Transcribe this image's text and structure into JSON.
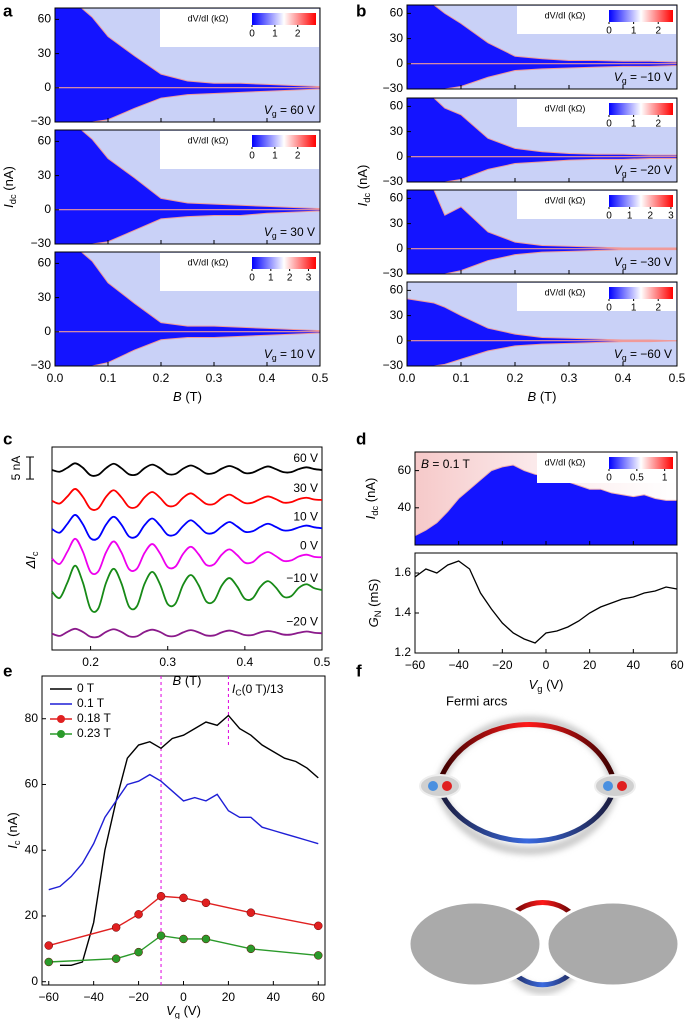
{
  "panel_labels": [
    "a",
    "b",
    "c",
    "d",
    "e",
    "f"
  ],
  "diagram": {
    "label": "Fermi arcs"
  },
  "chart_data": [
    {
      "type": "heatmap_stack",
      "xlabel": [
        "B",
        " (T)"
      ],
      "ylabel": [
        "I",
        "dc",
        " (nA)"
      ],
      "xlim": [
        0,
        0.5
      ],
      "xticks": [
        {
          "value": 0,
          "label": "0.0"
        },
        0.1,
        0.2,
        0.3,
        0.4,
        0.5
      ],
      "ylim": [
        -30,
        70
      ],
      "yticks": [
        {
          "value": -30,
          "label": "−30"
        },
        0,
        30,
        60
      ],
      "colorbar_label": "dV/dI (kΩ)",
      "x": [
        0,
        0.05,
        0.07,
        0.1,
        0.15,
        0.2,
        0.25,
        0.3,
        0.35,
        0.4,
        0.45,
        0.5
      ],
      "panels": [
        {
          "annotation": [
            "V",
            "g",
            " = 60 V"
          ],
          "clim": [
            0,
            2.8
          ],
          "cticks": [
            0,
            1,
            2
          ],
          "upper": [
            70,
            70,
            62,
            45,
            28,
            12,
            6,
            4,
            4,
            3,
            2,
            1
          ],
          "lower": [
            -30,
            -30,
            -30,
            -28,
            -18,
            -9,
            -6,
            -5,
            -4,
            -3,
            -2,
            -1
          ]
        },
        {
          "annotation": [
            "V",
            "g",
            " = 30 V"
          ],
          "clim": [
            0,
            2.8
          ],
          "cticks": [
            0,
            1,
            2
          ],
          "upper": [
            70,
            70,
            62,
            45,
            28,
            10,
            6,
            5,
            4,
            3,
            2,
            1
          ],
          "lower": [
            -30,
            -30,
            -30,
            -28,
            -18,
            -8,
            -6,
            -5,
            -5,
            -3,
            -2,
            -1
          ]
        },
        {
          "annotation": [
            "V",
            "g",
            " = 10 V"
          ],
          "clim": [
            0,
            3.4
          ],
          "cticks": [
            0,
            1,
            2,
            3
          ],
          "upper": [
            70,
            70,
            62,
            43,
            25,
            8,
            5,
            5,
            4,
            3,
            2,
            1
          ],
          "lower": [
            -30,
            -30,
            -30,
            -27,
            -16,
            -7,
            -5,
            -5,
            -4,
            -3,
            -2,
            -1
          ]
        }
      ]
    },
    {
      "type": "heatmap_stack",
      "xlabel": [
        "B",
        " (T)"
      ],
      "ylabel": [
        "I",
        "dc",
        " (nA)"
      ],
      "xlim": [
        0,
        0.5
      ],
      "xticks": [
        {
          "value": 0,
          "label": "0.0"
        },
        0.1,
        0.2,
        0.3,
        0.4,
        0.5
      ],
      "ylim": [
        -30,
        70
      ],
      "yticks": [
        {
          "value": -30,
          "label": "−30"
        },
        0,
        30,
        60
      ],
      "colorbar_label": "dV/dI (kΩ)",
      "x": [
        0,
        0.05,
        0.07,
        0.1,
        0.15,
        0.2,
        0.25,
        0.3,
        0.35,
        0.4,
        0.45,
        0.5
      ],
      "panels": [
        {
          "annotation": [
            "V",
            "g",
            " = −10 V"
          ],
          "clim": [
            0,
            2.6
          ],
          "cticks": [
            0,
            1,
            2
          ],
          "upper": [
            70,
            70,
            60,
            48,
            25,
            9,
            6,
            4,
            4,
            3,
            3,
            2
          ],
          "lower": [
            -30,
            -30,
            -30,
            -27,
            -16,
            -8,
            -6,
            -5,
            -4,
            -3,
            -3,
            -2
          ]
        },
        {
          "annotation": [
            "V",
            "g",
            " = −20 V"
          ],
          "clim": [
            0,
            2.6
          ],
          "cticks": [
            0,
            1,
            2
          ],
          "upper": [
            70,
            70,
            58,
            50,
            22,
            10,
            6,
            4,
            3,
            3,
            2,
            2
          ],
          "lower": [
            -30,
            -30,
            -30,
            -27,
            -15,
            -8,
            -6,
            -4,
            -3,
            -3,
            -2,
            -2
          ]
        },
        {
          "annotation": [
            "V",
            "g",
            " = −30 V"
          ],
          "clim": [
            0,
            3.1
          ],
          "cticks": [
            0,
            1,
            2,
            3
          ],
          "upper": [
            70,
            70,
            40,
            50,
            20,
            8,
            4,
            3,
            2,
            1,
            1,
            1
          ],
          "lower": [
            -30,
            -30,
            -30,
            -26,
            -14,
            -7,
            -4,
            -3,
            -2,
            -1,
            -1,
            -1
          ]
        },
        {
          "annotation": [
            "V",
            "g",
            " = −60 V"
          ],
          "clim": [
            0,
            2.6
          ],
          "cticks": [
            0,
            1,
            2
          ],
          "upper": [
            50,
            45,
            40,
            30,
            15,
            8,
            4,
            3,
            2,
            1,
            1,
            0
          ],
          "lower": [
            -30,
            -30,
            -28,
            -22,
            -12,
            -6,
            -4,
            -3,
            -2,
            -1,
            -1,
            0
          ]
        }
      ]
    },
    {
      "type": "line",
      "xlabel": [
        "B",
        " (T)"
      ],
      "ylabel": [
        "ΔI",
        "c"
      ],
      "xlim": [
        0.15,
        0.5
      ],
      "xticks": [
        0.2,
        0.3,
        0.4,
        0.5
      ],
      "ylim": [
        -42,
        4
      ],
      "scale_bar": {
        "value": 5,
        "label": "5 nA"
      },
      "x": [
        0.15,
        0.16,
        0.17,
        0.18,
        0.19,
        0.2,
        0.21,
        0.22,
        0.23,
        0.24,
        0.25,
        0.26,
        0.27,
        0.28,
        0.29,
        0.3,
        0.31,
        0.32,
        0.33,
        0.34,
        0.35,
        0.36,
        0.37,
        0.38,
        0.39,
        0.4,
        0.41,
        0.42,
        0.43,
        0.44,
        0.45,
        0.46,
        0.47,
        0.48,
        0.49,
        0.5
      ],
      "series": [
        {
          "name": "60 V",
          "color": "#000000",
          "values": [
            -1.2,
            -1.6,
            -0.7,
            0.3,
            -0.7,
            -2.4,
            -2.3,
            -0.8,
            0.2,
            -0.8,
            -2.2,
            -2.2,
            -0.8,
            0.0,
            -0.8,
            -2.1,
            -2.1,
            -0.9,
            -0.2,
            -0.9,
            -2.0,
            -1.9,
            -0.9,
            -0.3,
            -0.9,
            -1.9,
            -1.8,
            -1.0,
            -0.4,
            -1.0,
            -1.7,
            -1.7,
            -1.0,
            -0.6,
            -1.0,
            -1.2
          ]
        },
        {
          "name": "30 V",
          "color": "#ff0000",
          "values": [
            -8.2,
            -8.8,
            -7.2,
            -5.5,
            -7.3,
            -10.0,
            -9.9,
            -7.3,
            -5.8,
            -7.4,
            -9.6,
            -9.5,
            -7.4,
            -6.2,
            -7.5,
            -9.3,
            -9.2,
            -7.5,
            -6.5,
            -7.6,
            -8.9,
            -8.9,
            -7.6,
            -6.8,
            -7.7,
            -8.7,
            -8.6,
            -7.8,
            -7.2,
            -7.8,
            -8.6,
            -8.5,
            -7.8,
            -7.5,
            -7.9,
            -8.0
          ]
        },
        {
          "name": "10 V",
          "color": "#0000ff",
          "values": [
            -14.6,
            -15.4,
            -13.4,
            -11.4,
            -13.5,
            -16.7,
            -16.6,
            -13.6,
            -11.8,
            -13.6,
            -16.3,
            -16.2,
            -13.7,
            -12.2,
            -13.8,
            -15.9,
            -15.8,
            -13.9,
            -12.6,
            -13.9,
            -15.5,
            -15.4,
            -14.0,
            -13.0,
            -14.0,
            -15.2,
            -15.1,
            -14.1,
            -13.4,
            -14.1,
            -14.9,
            -14.8,
            -14.2,
            -13.8,
            -14.2,
            -14.4
          ]
        },
        {
          "name": "0 V",
          "color": "#ee00ee",
          "values": [
            -21.3,
            -22.5,
            -19.7,
            -16.8,
            -19.7,
            -24.3,
            -24.2,
            -19.9,
            -17.4,
            -19.9,
            -23.7,
            -23.6,
            -20.0,
            -18.0,
            -20.1,
            -23.2,
            -23.1,
            -20.2,
            -18.6,
            -20.3,
            -22.7,
            -22.6,
            -20.4,
            -19.2,
            -20.5,
            -22.2,
            -22.1,
            -20.6,
            -19.8,
            -20.7,
            -21.8,
            -21.7,
            -20.8,
            -20.4,
            -20.9,
            -21.0
          ]
        },
        {
          "name": "−10 V",
          "color": "#178a17",
          "values": [
            -28.8,
            -30.2,
            -26.7,
            -22.9,
            -26.7,
            -32.7,
            -32.6,
            -26.8,
            -23.6,
            -26.9,
            -32.2,
            -32.1,
            -27.0,
            -24.3,
            -27.1,
            -31.6,
            -31.5,
            -27.2,
            -25.0,
            -27.3,
            -31.0,
            -30.9,
            -27.4,
            -25.7,
            -27.6,
            -30.4,
            -30.3,
            -27.7,
            -26.4,
            -27.8,
            -29.9,
            -29.8,
            -27.9,
            -27.1,
            -28.0,
            -28.4
          ]
        },
        {
          "name": "−20 V",
          "color": "#8b1a8b",
          "values": [
            -38.3,
            -38.8,
            -37.9,
            -37.2,
            -37.9,
            -39.0,
            -39.0,
            -37.9,
            -37.3,
            -37.9,
            -38.9,
            -38.9,
            -37.9,
            -37.4,
            -37.9,
            -38.8,
            -38.8,
            -38.0,
            -37.5,
            -38.0,
            -38.7,
            -38.7,
            -38.0,
            -37.6,
            -38.0,
            -38.6,
            -38.6,
            -38.0,
            -37.7,
            -38.0,
            -38.5,
            -38.5,
            -38.1,
            -37.8,
            -38.1,
            -38.2
          ]
        }
      ]
    },
    {
      "type": "heatmap_line",
      "annotation": [
        "B",
        " = 0.1 T"
      ],
      "colorbar_label": "dV/dI (kΩ)",
      "clim": [
        0,
        1.15
      ],
      "cticks": [
        0,
        0.5,
        1
      ],
      "xlim": [
        -60,
        60
      ],
      "xticks": [
        {
          "value": -60,
          "label": "−60"
        },
        {
          "value": -40,
          "label": "−40"
        },
        {
          "value": -20,
          "label": "−20"
        },
        0,
        20,
        40,
        60
      ],
      "xlabel": [
        "V",
        "g",
        " (V)"
      ],
      "x": [
        -60,
        -55,
        -50,
        -45,
        -40,
        -35,
        -30,
        -25,
        -20,
        -15,
        -10,
        -5,
        0,
        5,
        10,
        15,
        20,
        25,
        30,
        35,
        40,
        45,
        50,
        55,
        60
      ],
      "top": {
        "ylabel": [
          "I",
          "dc",
          " (nA)"
        ],
        "ylim": [
          20,
          70
        ],
        "yticks": [
          40,
          60
        ],
        "values": [
          25,
          28,
          32,
          38,
          45,
          50,
          55,
          60,
          62,
          63,
          60,
          58,
          57,
          55,
          54,
          52,
          50,
          50,
          48,
          47,
          46,
          47,
          45,
          44,
          44
        ]
      },
      "bottom": {
        "ylabel": [
          "G",
          "N",
          " (mS)"
        ],
        "ylim": [
          1.2,
          1.7
        ],
        "yticks": [
          1.2,
          1.4,
          1.6
        ],
        "values": [
          1.58,
          1.62,
          1.6,
          1.64,
          1.66,
          1.62,
          1.5,
          1.42,
          1.35,
          1.3,
          1.27,
          1.25,
          1.3,
          1.31,
          1.33,
          1.36,
          1.4,
          1.43,
          1.45,
          1.47,
          1.48,
          1.5,
          1.51,
          1.53,
          1.52
        ]
      }
    },
    {
      "type": "line",
      "xlabel": [
        "V",
        "g",
        " (V)"
      ],
      "ylabel": [
        "I",
        "c",
        " (nA)"
      ],
      "xlim": [
        -63,
        63
      ],
      "xticks": [
        {
          "value": -60,
          "label": "−60"
        },
        {
          "value": -40,
          "label": "−40"
        },
        {
          "value": -20,
          "label": "−20"
        },
        0,
        20,
        40,
        60
      ],
      "ylim": [
        -1,
        93
      ],
      "yticks": [
        0,
        20,
        40,
        60,
        80
      ],
      "annotation": [
        "I",
        "C",
        "(0 T)/13"
      ],
      "vlines": [
        -10,
        20
      ],
      "legend": "upper left",
      "series": [
        {
          "name": "0 T",
          "color": "#000000",
          "markers": false,
          "x": [
            -55,
            -50,
            -45,
            -40,
            -35,
            -30,
            -25,
            -20,
            -15,
            -10,
            -5,
            0,
            5,
            10,
            15,
            20,
            25,
            30,
            35,
            40,
            45,
            50,
            55,
            60
          ],
          "values": [
            5,
            5,
            6,
            18,
            40,
            55,
            68,
            72,
            73,
            71,
            74,
            75,
            77,
            79,
            78,
            81,
            77,
            75,
            72,
            70,
            68,
            67,
            65,
            62
          ]
        },
        {
          "name": "0.1 T",
          "color": "#1f1fd6",
          "markers": false,
          "x": [
            -60,
            -55,
            -50,
            -45,
            -40,
            -35,
            -30,
            -25,
            -20,
            -15,
            -10,
            -5,
            0,
            5,
            10,
            15,
            20,
            25,
            30,
            35,
            40,
            45,
            50,
            55,
            60
          ],
          "values": [
            28,
            29,
            32,
            36,
            42,
            50,
            55,
            60,
            61,
            63,
            61,
            58,
            55,
            56,
            55,
            57,
            52,
            50,
            50,
            47,
            46,
            45,
            44,
            43,
            42
          ]
        },
        {
          "name": "0.18 T",
          "color": "#e02020",
          "markers": true,
          "x": [
            -60,
            -30,
            -20,
            -10,
            0,
            10,
            30,
            60
          ],
          "values": [
            11,
            16.5,
            20.5,
            26,
            25.5,
            24,
            21,
            17
          ]
        },
        {
          "name": "0.23 T",
          "color": "#2a9a2a",
          "markers": true,
          "x": [
            -60,
            -30,
            -20,
            -10,
            0,
            10,
            30,
            60
          ],
          "values": [
            6,
            7,
            9,
            14,
            13,
            13,
            10,
            8
          ]
        }
      ]
    }
  ]
}
